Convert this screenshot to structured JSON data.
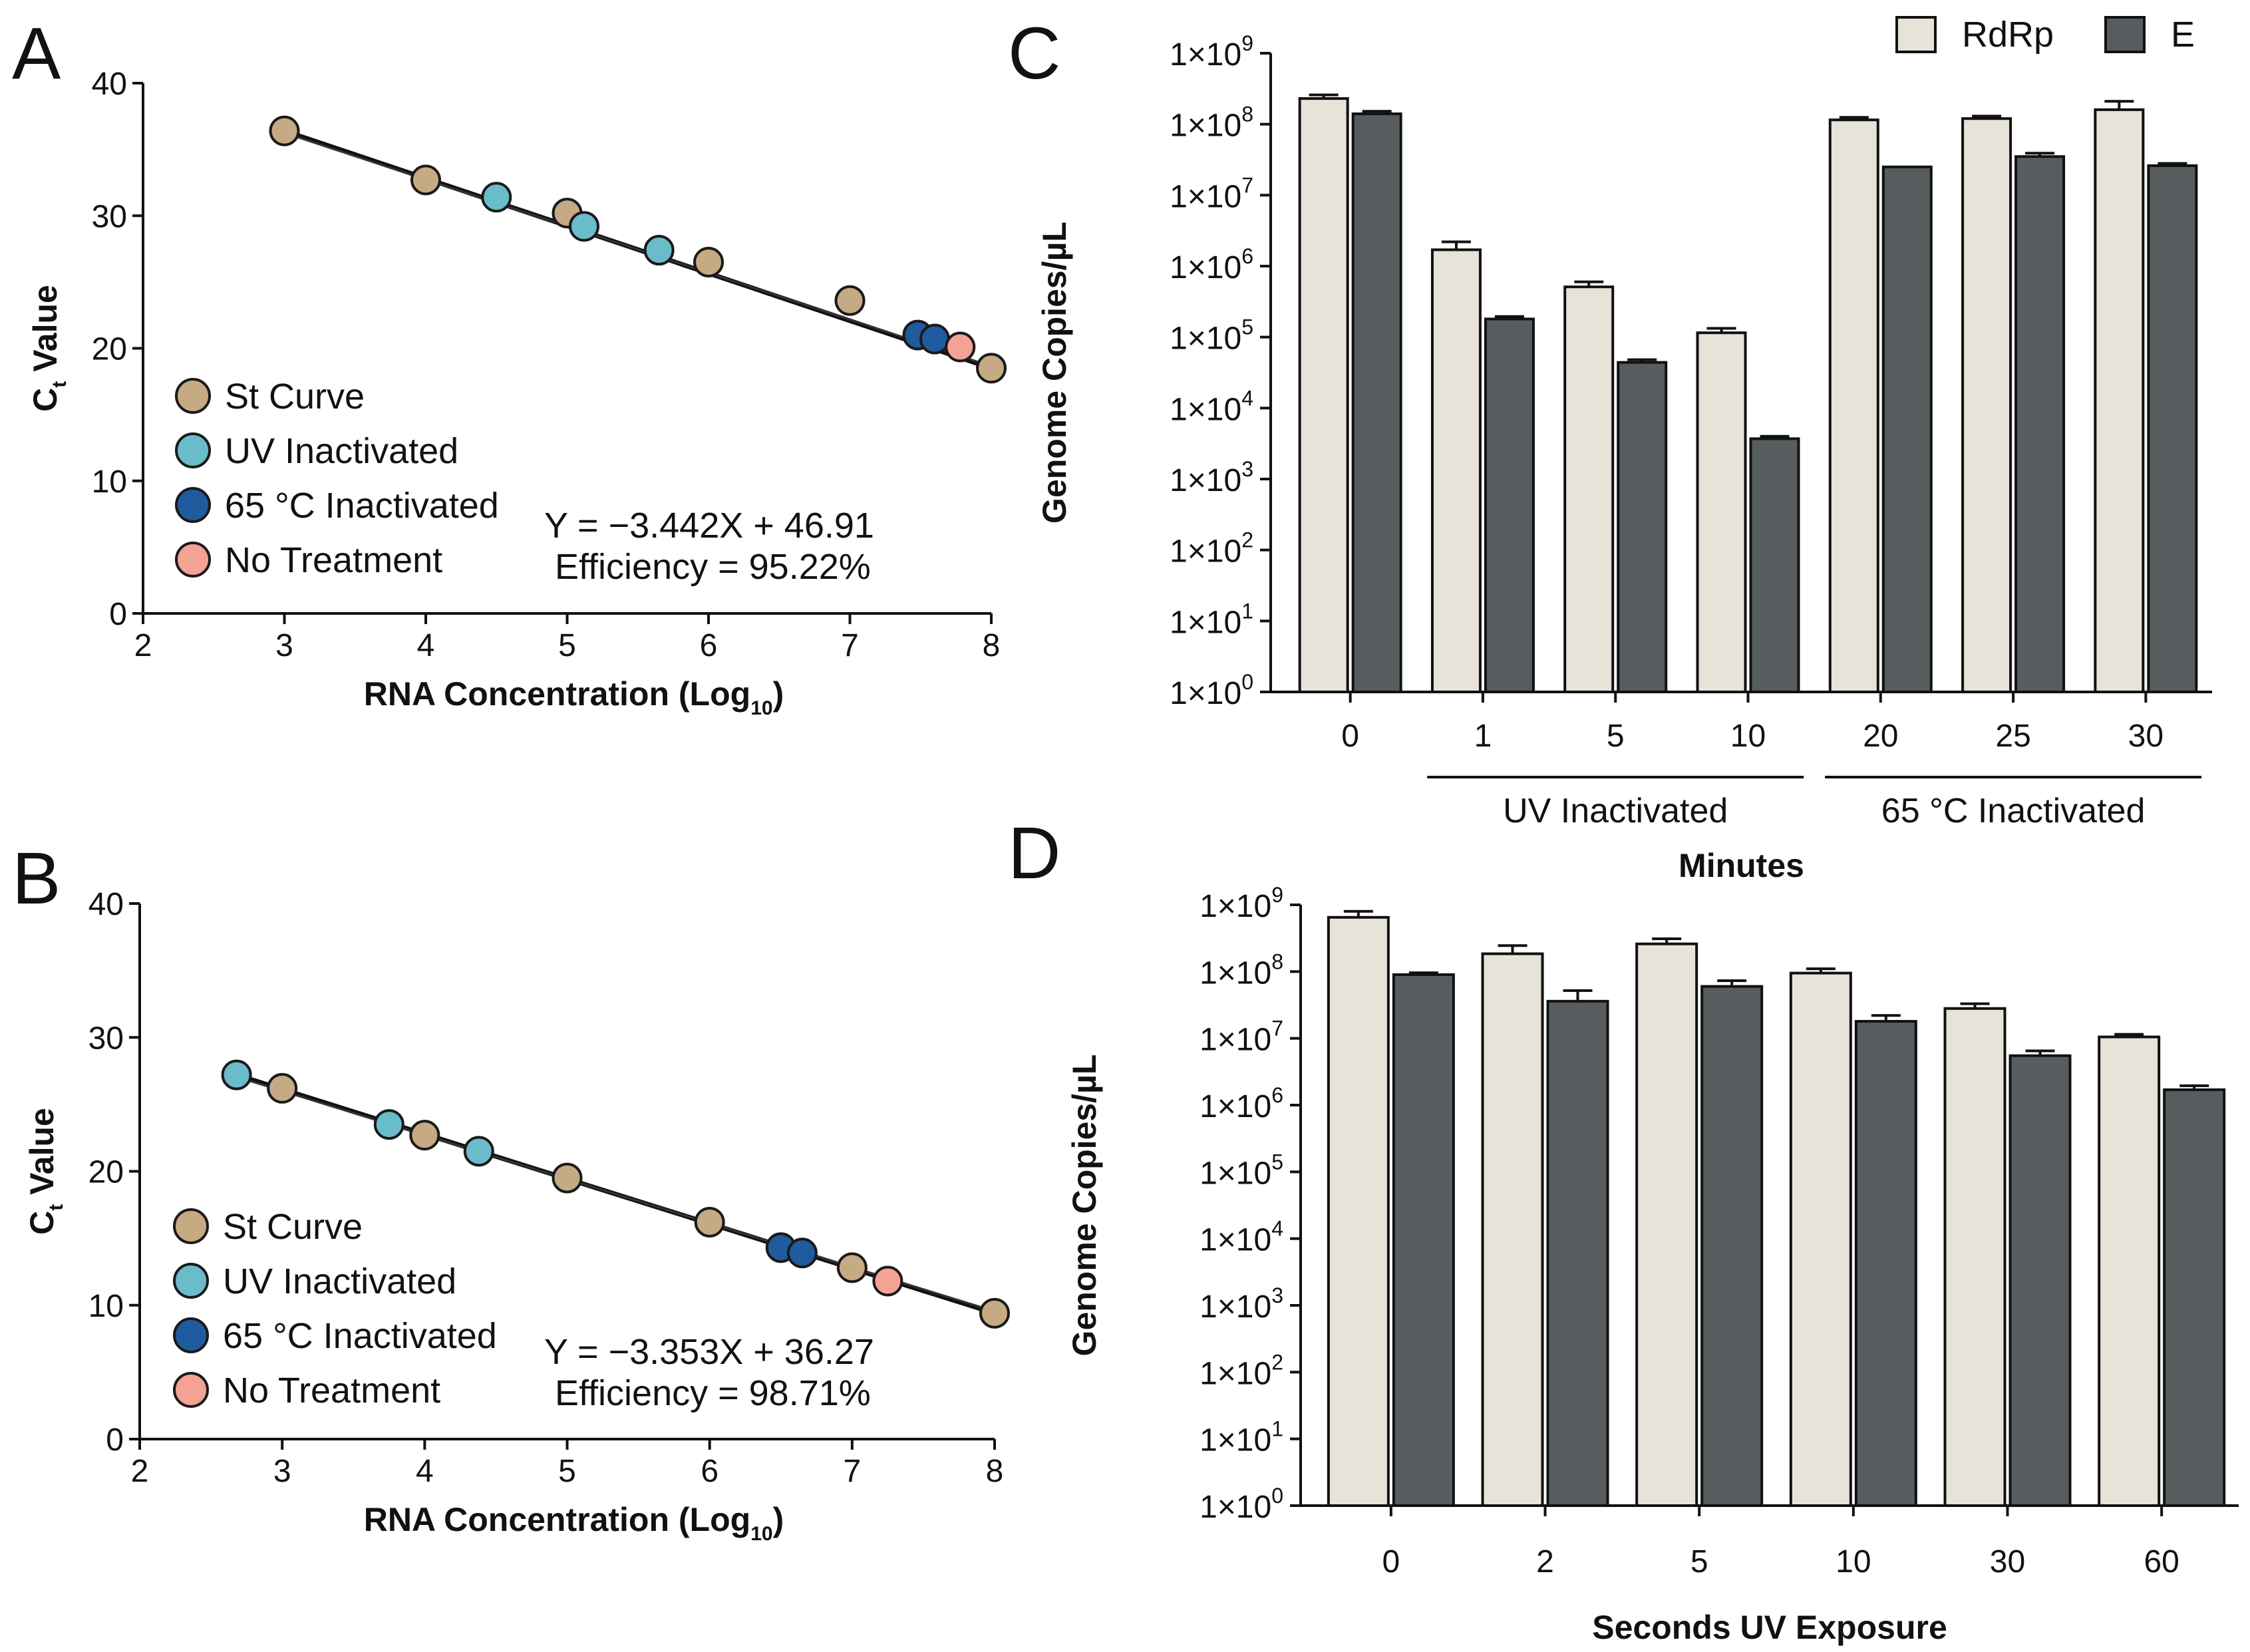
{
  "colors": {
    "st_curve": "#c6aa83",
    "uv_inactivated": "#6bbcca",
    "heat_inactivated": "#1f5b9e",
    "no_treatment": "#f4a294",
    "rdrp_bar": "#e8e3d9",
    "e_bar": "#575d5e",
    "axis": "#111111"
  },
  "chart_data": [
    {
      "panel": "A",
      "type": "scatter",
      "xlabel": "RNA Concentration (Log",
      "xlabel_sub": "10",
      "xlabel_end": ")",
      "ylabel": "C",
      "ylabel_sub": "t",
      "ylabel_end": " Value",
      "xlim": [
        2,
        8
      ],
      "ylim": [
        0,
        40
      ],
      "xticks": [
        "2",
        "3",
        "4",
        "5",
        "6",
        "7",
        "8"
      ],
      "yticks": [
        "0",
        "10",
        "20",
        "30",
        "40"
      ],
      "legend": [
        "St Curve",
        "UV Inactivated",
        "65 °C Inactivated",
        "No Treatment"
      ],
      "equation": "Y = −3.442X + 46.91",
      "efficiency": "Efficiency =  95.22%",
      "line": {
        "x": [
          3,
          8
        ],
        "y": [
          36.4,
          18.5
        ]
      },
      "series": [
        {
          "name": "St Curve",
          "x": [
            3,
            4,
            5,
            6,
            7,
            8
          ],
          "y": [
            36.4,
            32.7,
            30.2,
            26.5,
            23.6,
            18.5
          ]
        },
        {
          "name": "UV Inactivated",
          "x": [
            4.5,
            5.12,
            5.65
          ],
          "y": [
            31.4,
            29.2,
            27.4
          ]
        },
        {
          "name": "65 °C Inactivated",
          "x": [
            7.48,
            7.6
          ],
          "y": [
            21.0,
            20.7
          ]
        },
        {
          "name": "No Treatment",
          "x": [
            7.78
          ],
          "y": [
            20.1
          ]
        }
      ]
    },
    {
      "panel": "B",
      "type": "scatter",
      "xlabel": "RNA Concentration (Log",
      "xlabel_sub": "10",
      "xlabel_end": ")",
      "ylabel": "C",
      "ylabel_sub": "t",
      "ylabel_end": " Value",
      "xlim": [
        2,
        8
      ],
      "ylim": [
        0,
        40
      ],
      "xticks": [
        "2",
        "3",
        "4",
        "5",
        "6",
        "7",
        "8"
      ],
      "yticks": [
        "0",
        "10",
        "20",
        "30",
        "40"
      ],
      "legend": [
        "St Curve",
        "UV Inactivated",
        "65 °C Inactivated",
        "No Treatment"
      ],
      "equation": "Y = −3.353X + 36.27",
      "efficiency": "Efficiency =  98.71%",
      "line": {
        "x": [
          2.68,
          8
        ],
        "y": [
          27.2,
          9.4
        ]
      },
      "series": [
        {
          "name": "St Curve",
          "x": [
            3,
            4,
            5,
            6,
            7,
            8
          ],
          "y": [
            26.2,
            22.7,
            19.5,
            16.2,
            12.8,
            9.4
          ]
        },
        {
          "name": "UV Inactivated",
          "x": [
            2.68,
            3.75,
            4.38
          ],
          "y": [
            27.2,
            23.5,
            21.5
          ]
        },
        {
          "name": "65 °C Inactivated",
          "x": [
            6.5,
            6.65
          ],
          "y": [
            14.3,
            13.9
          ]
        },
        {
          "name": "No Treatment",
          "x": [
            7.25
          ],
          "y": [
            11.8
          ]
        }
      ]
    },
    {
      "panel": "C",
      "type": "bar",
      "scale": "log10",
      "ylabel": "Genome Copies/µL",
      "xlabel": "Minutes",
      "categories": [
        "0",
        "1",
        "5",
        "10",
        "20",
        "25",
        "30"
      ],
      "yticks_exp": [
        "0",
        "1",
        "2",
        "3",
        "4",
        "5",
        "6",
        "7",
        "8",
        "9"
      ],
      "ytick_base": "1×10",
      "groups": [
        {
          "label": "UV Inactivated",
          "from": 1,
          "to": 3
        },
        {
          "label": "65 °C Inactivated",
          "from": 4,
          "to": 6
        }
      ],
      "legend": [
        "RdRp",
        "E"
      ],
      "series": [
        {
          "name": "RdRp",
          "values": [
            230000000.0,
            1700000.0,
            510000.0,
            115000.0,
            115000000.0,
            120000000.0,
            160000000.0
          ],
          "errors": [
            29000000.0,
            500000.0,
            90000.0,
            18000.0,
            10000000.0,
            10000000.0,
            50000000.0
          ]
        },
        {
          "name": "E",
          "values": [
            140000000.0,
            180000.0,
            44000.0,
            3700.0,
            25000000.0,
            35000000.0,
            26000000.0
          ],
          "errors": [
            12000000.0,
            15000.0,
            4000.0,
            300.0,
            0,
            4000000.0,
            2000000.0
          ]
        }
      ]
    },
    {
      "panel": "D",
      "type": "bar",
      "scale": "log10",
      "ylabel": "Genome Copies/µL",
      "xlabel": "Seconds UV Exposure",
      "categories": [
        "0",
        "2",
        "5",
        "10",
        "30",
        "60"
      ],
      "yticks_exp": [
        "0",
        "1",
        "2",
        "3",
        "4",
        "5",
        "6",
        "7",
        "8",
        "9"
      ],
      "ytick_base": "1×10",
      "series": [
        {
          "name": "RdRp",
          "values": [
            650000000.0,
            185000000.0,
            260000000.0,
            95000000.0,
            28000000.0,
            10500000.0
          ],
          "errors": [
            150000000.0,
            60000000.0,
            50000000.0,
            15000000.0,
            5000000.0,
            1000000.0
          ]
        },
        {
          "name": "E",
          "values": [
            90000000.0,
            36000000.0,
            60000000.0,
            18000000.0,
            5500000.0,
            1700000.0
          ],
          "errors": [
            6000000.0,
            16000000.0,
            13000000.0,
            4000000.0,
            1000000.0,
            250000.0
          ]
        }
      ]
    }
  ]
}
